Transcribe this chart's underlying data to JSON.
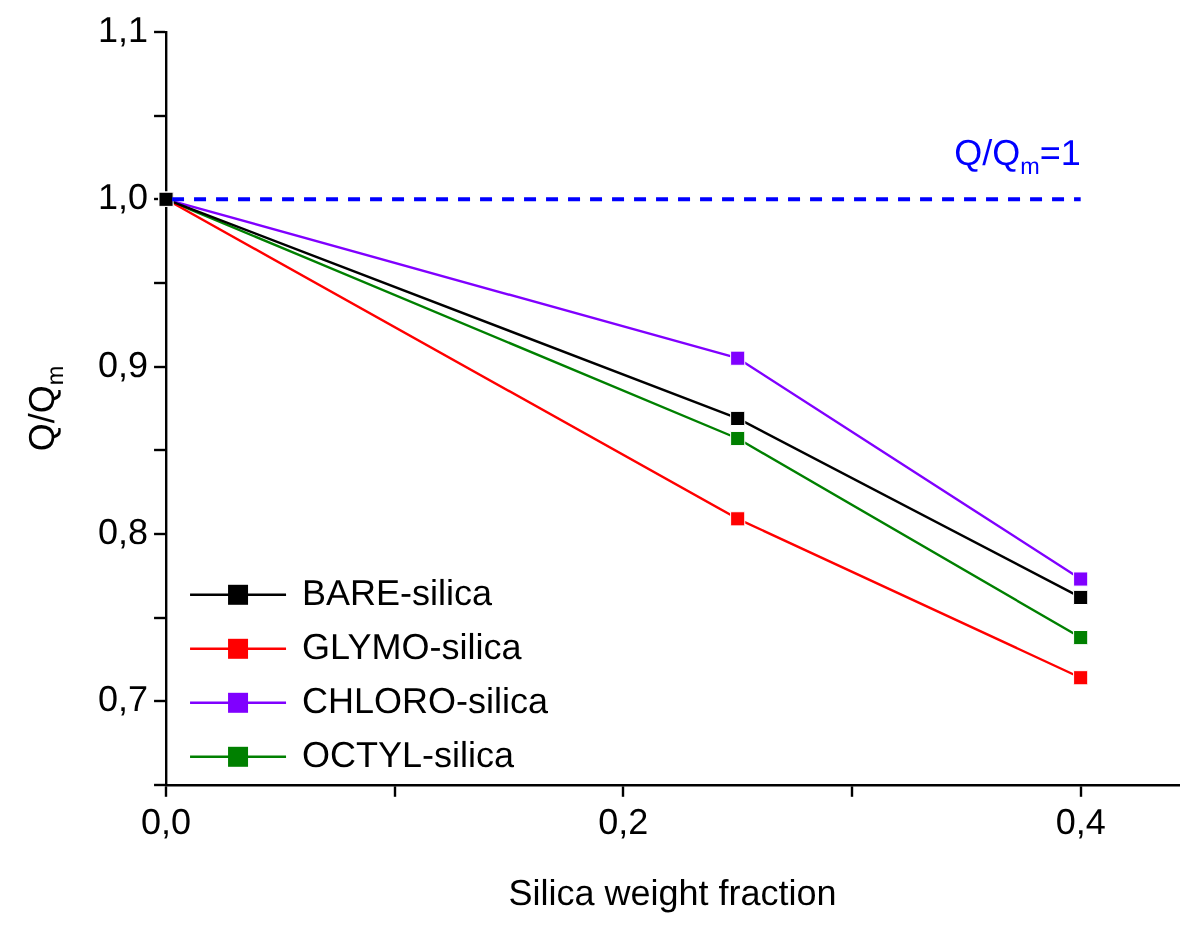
{
  "chart_data": {
    "type": "line",
    "xlabel": "Silica weight fraction",
    "ylabel": "Q/Q$_{m}$",
    "x": [
      0,
      0.25,
      0.4
    ],
    "series": [
      {
        "name": "BARE-silica",
        "color": "#000000",
        "values": [
          1.0,
          0.869,
          0.762
        ]
      },
      {
        "name": "GLYMO-silica",
        "color": "#ff0000",
        "values": [
          1.0,
          0.809,
          0.714
        ]
      },
      {
        "name": "CHLORO-silica",
        "color": "#8000ff",
        "values": [
          1.0,
          0.905,
          0.773
        ]
      },
      {
        "name": "OCTYL-silica",
        "color": "#008000",
        "values": [
          1.0,
          0.857,
          0.738
        ]
      }
    ],
    "xlim": [
      0,
      0.443
    ],
    "xticks": [
      {
        "value": 0,
        "label": "0,0"
      },
      {
        "value": 0.1,
        "label": null
      },
      {
        "value": 0.2,
        "label": "0,2"
      },
      {
        "value": 0.3,
        "label": null
      },
      {
        "value": 0.4,
        "label": "0,4"
      }
    ],
    "ylim": [
      0.65,
      1.1
    ],
    "yticks": [
      {
        "value": 0.65,
        "label": null
      },
      {
        "value": 0.7,
        "label": "0,7"
      },
      {
        "value": 0.75,
        "label": null
      },
      {
        "value": 0.8,
        "label": "0,8"
      },
      {
        "value": 0.85,
        "label": null
      },
      {
        "value": 0.9,
        "label": "0,9"
      },
      {
        "value": 0.95,
        "label": null
      },
      {
        "value": 1.0,
        "label": "1,0"
      },
      {
        "value": 1.05,
        "label": null
      },
      {
        "value": 1.1,
        "label": "1,1"
      }
    ],
    "ref_lines": [
      {
        "axis": "y",
        "value": 1.0,
        "label": "Q/Q$_{m}$=1",
        "color": "#0000ff",
        "line_style": "dashed"
      }
    ],
    "grid": false,
    "legend": "bottom left",
    "marker": "square",
    "line_style": "solid"
  }
}
